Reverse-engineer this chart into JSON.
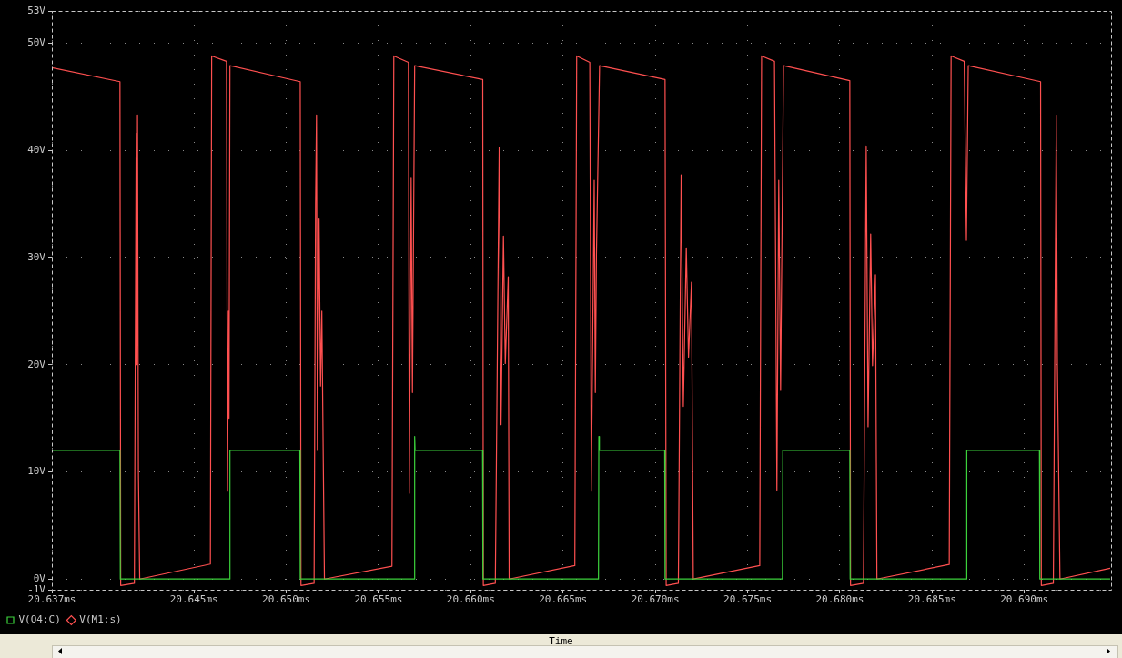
{
  "chart_data": {
    "type": "line",
    "xlabel": "Time",
    "legend": "bottom left",
    "grid": true,
    "xlim": [
      20.6373,
      20.6947
    ],
    "ylim": [
      -1,
      53
    ],
    "xticks": [
      {
        "value": 20.6373,
        "label": "20.637ms"
      },
      {
        "value": 20.645,
        "label": "20.645ms"
      },
      {
        "value": 20.65,
        "label": "20.650ms"
      },
      {
        "value": 20.655,
        "label": "20.655ms"
      },
      {
        "value": 20.66,
        "label": "20.660ms"
      },
      {
        "value": 20.665,
        "label": "20.665ms"
      },
      {
        "value": 20.67,
        "label": "20.670ms"
      },
      {
        "value": 20.675,
        "label": "20.675ms"
      },
      {
        "value": 20.68,
        "label": "20.680ms"
      },
      {
        "value": 20.685,
        "label": "20.685ms"
      },
      {
        "value": 20.69,
        "label": "20.690ms"
      }
    ],
    "yticks": [
      {
        "value": -1,
        "label": "-1V"
      },
      {
        "value": 0,
        "label": "0V"
      },
      {
        "value": 10,
        "label": "10V"
      },
      {
        "value": 20,
        "label": "20V"
      },
      {
        "value": 30,
        "label": "30V"
      },
      {
        "value": 40,
        "label": "40V"
      },
      {
        "value": 50,
        "label": "50V"
      },
      {
        "value": 53,
        "label": "53V"
      }
    ],
    "series": [
      {
        "name": "V(Q4:C)",
        "color": "#3cd23c",
        "x": [
          20.6373,
          20.64099,
          20.64101,
          20.64693,
          20.64695,
          20.65074,
          20.65076,
          20.65694,
          20.65696,
          20.65698,
          20.66064,
          20.66066,
          20.66692,
          20.66694,
          20.66697,
          20.67051,
          20.67053,
          20.67689,
          20.67691,
          20.68054,
          20.68056,
          20.68686,
          20.68688,
          20.69082,
          20.69084,
          20.69465
        ],
        "values": [
          12,
          12,
          0,
          0,
          12,
          12,
          0,
          0,
          13.3,
          12,
          12,
          0,
          0,
          13.3,
          12,
          12,
          0,
          0,
          12,
          12,
          0,
          0,
          12,
          12,
          0,
          0
        ]
      },
      {
        "name": "V(M1:s)",
        "color": "#ff5050",
        "x": [
          20.6373,
          20.64099,
          20.64103,
          20.64177,
          20.64187,
          20.64191,
          20.64194,
          20.64199,
          20.64206,
          20.64589,
          20.64596,
          20.64676,
          20.64682,
          20.64687,
          20.6469,
          20.64695,
          20.65076,
          20.6508,
          20.65151,
          20.65159,
          20.65164,
          20.65169,
          20.65178,
          20.65186,
          20.65193,
          20.65207,
          20.65573,
          20.65583,
          20.65662,
          20.65667,
          20.65677,
          20.65684,
          20.65696,
          20.66065,
          20.66068,
          20.66133,
          20.66154,
          20.66164,
          20.66177,
          20.66187,
          20.66203,
          20.66208,
          20.66564,
          20.66574,
          20.66645,
          20.66653,
          20.66669,
          20.66675,
          20.66681,
          20.66698,
          20.67053,
          20.67059,
          20.67125,
          20.6714,
          20.67152,
          20.67168,
          20.6718,
          20.67196,
          20.67206,
          20.67566,
          20.67576,
          20.67646,
          20.67659,
          20.67669,
          20.67679,
          20.67695,
          20.68054,
          20.68058,
          20.68128,
          20.68143,
          20.68153,
          20.68167,
          20.68177,
          20.68193,
          20.68201,
          20.68593,
          20.68603,
          20.68674,
          20.68686,
          20.68696,
          20.69088,
          20.69092,
          20.69157,
          20.69173,
          20.69179,
          20.69193,
          20.69465
        ],
        "values": [
          47.7,
          46.4,
          -0.6,
          -0.4,
          41.6,
          20,
          43.3,
          10,
          0,
          1.4,
          48.8,
          48.3,
          8.2,
          25,
          15,
          47.9,
          46.4,
          -0.6,
          -0.4,
          35,
          43.3,
          12,
          33.6,
          18,
          25,
          0,
          1.2,
          48.8,
          48.2,
          8,
          37.4,
          17.4,
          47.9,
          46.6,
          -0.6,
          -0.4,
          40.3,
          14.4,
          32,
          20.1,
          28.2,
          0,
          1.26,
          48.8,
          48.2,
          8.2,
          37.2,
          17.4,
          30.3,
          47.9,
          46.6,
          -0.6,
          -0.4,
          37.7,
          16.1,
          30.9,
          20.7,
          27.7,
          0,
          1.26,
          48.8,
          48.3,
          8.3,
          37.2,
          17.6,
          47.9,
          46.5,
          -0.6,
          -0.4,
          40.4,
          14.2,
          32.2,
          19.9,
          28.4,
          0,
          1.36,
          48.8,
          48.3,
          31.6,
          47.9,
          46.4,
          -0.6,
          -0.4,
          43.3,
          20,
          0,
          1
        ]
      }
    ]
  }
}
